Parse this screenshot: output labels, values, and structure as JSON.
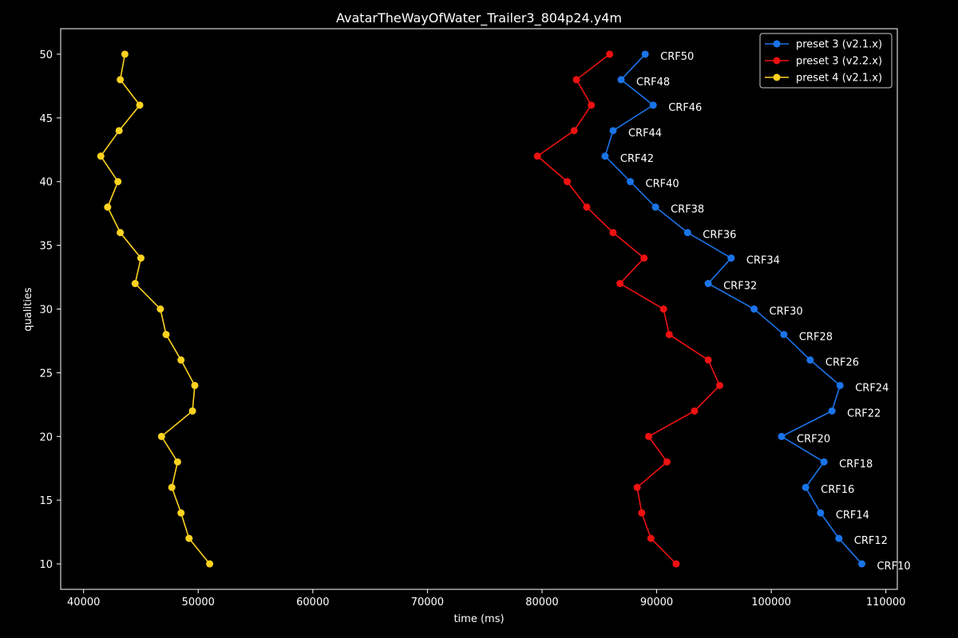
{
  "chart_data": {
    "type": "line",
    "title": "AvatarTheWayOfWater_Trailer3_804p24.y4m",
    "xlabel": "time (ms)",
    "ylabel": "qualities",
    "xlim": [
      38000,
      111000
    ],
    "ylim": [
      8,
      52
    ],
    "xticks": [
      40000,
      50000,
      60000,
      70000,
      80000,
      90000,
      100000,
      110000
    ],
    "yticks": [
      10,
      15,
      20,
      25,
      30,
      35,
      40,
      45,
      50
    ],
    "grid": false,
    "legend_position": "top-right",
    "point_label_series": 0,
    "series": [
      {
        "name": "preset 3 (v2.1.x)",
        "color": "#1a74e8",
        "y": [
          50,
          48,
          46,
          44,
          42,
          40,
          38,
          36,
          34,
          32,
          30,
          28,
          26,
          24,
          22,
          20,
          18,
          16,
          14,
          12,
          10
        ],
        "x": [
          89000,
          86900,
          89700,
          86200,
          85500,
          87700,
          89900,
          92700,
          96500,
          94500,
          98500,
          101100,
          103400,
          106000,
          105300,
          100900,
          104600,
          103000,
          104300,
          105900,
          107900
        ],
        "point_labels": [
          "CRF50",
          "CRF48",
          "CRF46",
          "CRF44",
          "CRF42",
          "CRF40",
          "CRF38",
          "CRF36",
          "CRF34",
          "CRF32",
          "CRF30",
          "CRF28",
          "CRF26",
          "CRF24",
          "CRF22",
          "CRF20",
          "CRF18",
          "CRF16",
          "CRF14",
          "CRF12",
          "CRF10"
        ]
      },
      {
        "name": "preset 3 (v2.2.x)",
        "color": "#ee1111",
        "y": [
          50,
          48,
          46,
          44,
          42,
          40,
          38,
          36,
          34,
          32,
          30,
          28,
          26,
          24,
          22,
          20,
          18,
          16,
          14,
          12,
          10
        ],
        "x": [
          85900,
          83000,
          84300,
          82800,
          79600,
          82200,
          83900,
          86200,
          88900,
          86800,
          90600,
          91100,
          94500,
          95500,
          93300,
          89300,
          90900,
          88300,
          88700,
          89500,
          91700
        ]
      },
      {
        "name": "preset 4 (v2.1.x)",
        "color": "#ffd21f",
        "y": [
          50,
          48,
          46,
          44,
          42,
          40,
          38,
          36,
          34,
          32,
          30,
          28,
          26,
          24,
          22,
          20,
          18,
          16,
          14,
          12,
          10
        ],
        "x": [
          43600,
          43200,
          44900,
          43100,
          41500,
          43000,
          42100,
          43200,
          45000,
          44500,
          46700,
          47200,
          48500,
          49700,
          49500,
          46800,
          48200,
          47700,
          48500,
          49200,
          51000
        ]
      }
    ]
  }
}
